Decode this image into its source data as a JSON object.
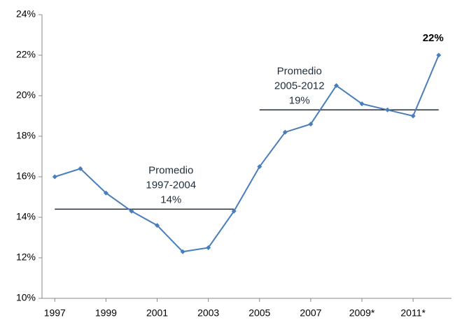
{
  "chart_data": {
    "type": "line",
    "x": [
      1997,
      1998,
      1999,
      2000,
      2001,
      2002,
      2003,
      2004,
      2005,
      2006,
      2007,
      2008,
      2009,
      2010,
      2011,
      2012
    ],
    "series": [
      {
        "color": "#4a7ebb",
        "values": [
          16.0,
          16.4,
          15.2,
          14.3,
          13.6,
          12.3,
          12.5,
          14.3,
          16.5,
          18.2,
          18.6,
          20.5,
          19.6,
          19.3,
          19.0,
          22.0
        ],
        "value_labels": [
          null,
          null,
          null,
          null,
          null,
          null,
          null,
          null,
          null,
          null,
          null,
          null,
          null,
          null,
          null,
          "22%"
        ]
      }
    ],
    "averages": [
      {
        "title": "Promedio",
        "period": "1997-2004",
        "value": 14.4,
        "value_label": "14%",
        "x": [
          1997,
          2004
        ]
      },
      {
        "title": "Promedio",
        "period": "2005-2012",
        "value": 19.3,
        "value_label": "19%",
        "x": [
          2005,
          2012
        ]
      }
    ],
    "xlim": [
      1996.5,
      2012.5
    ],
    "xticks": [
      1997,
      1999,
      2001,
      2003,
      2005,
      2007,
      {
        "value": 2009,
        "label": "2009*"
      },
      {
        "value": 2011,
        "label": "2011*"
      }
    ],
    "ylim": [
      10,
      24
    ],
    "yticks": [
      {
        "value": 10,
        "label": "10%"
      },
      {
        "value": 12,
        "label": "12%"
      },
      {
        "value": 14,
        "label": "14%"
      },
      {
        "value": 16,
        "label": "16%"
      },
      {
        "value": 18,
        "label": "18%"
      },
      {
        "value": 20,
        "label": "20%"
      },
      {
        "value": 22,
        "label": "22%"
      },
      {
        "value": 24,
        "label": "24%"
      }
    ],
    "grid": false
  }
}
